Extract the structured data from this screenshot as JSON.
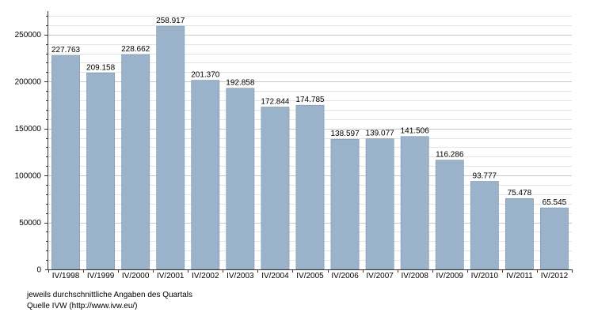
{
  "chart_data": {
    "type": "bar",
    "categories": [
      "IV/1998",
      "IV/1999",
      "IV/2000",
      "IV/2001",
      "IV/2002",
      "IV/2003",
      "IV/2004",
      "IV/2005",
      "IV/2006",
      "IV/2007",
      "IV/2008",
      "IV/2009",
      "IV/2010",
      "IV/2011",
      "IV/2012"
    ],
    "values": [
      227763,
      209158,
      228662,
      258917,
      201370,
      192858,
      172844,
      174785,
      138597,
      139077,
      141506,
      116286,
      93777,
      75478,
      65545
    ],
    "value_labels": [
      "227.763",
      "209.158",
      "228.662",
      "258.917",
      "201.370",
      "192.858",
      "172.844",
      "174.785",
      "138.597",
      "139.077",
      "141.506",
      "116.286",
      "93.777",
      "75.478",
      "65.545"
    ],
    "y_ticks": [
      0,
      50000,
      100000,
      150000,
      200000,
      250000
    ],
    "ylim": [
      0,
      275000
    ],
    "grid": true,
    "bar_color": "#9bb3ca",
    "bar_edge_color": "#7f95ab"
  },
  "notes": {
    "line1": "jeweils durchschnittliche Angaben des Quartals",
    "line2": "Quelle IVW (http://www.ivw.eu/)"
  }
}
